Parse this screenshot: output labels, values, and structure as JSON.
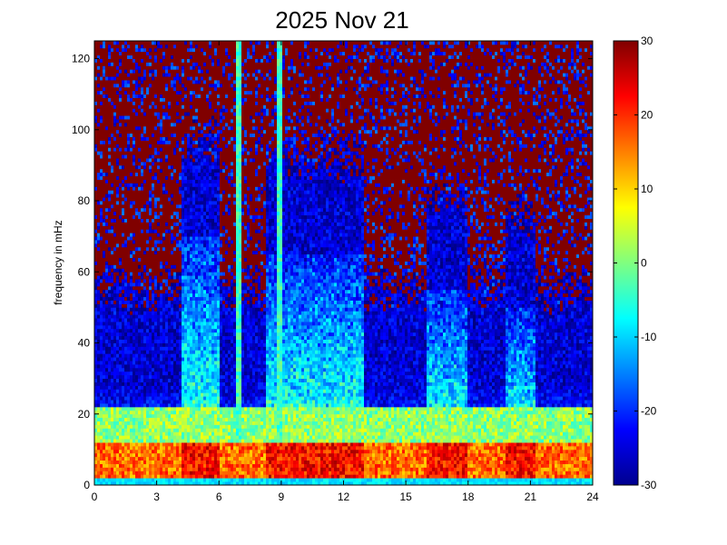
{
  "chart_data": {
    "type": "heatmap",
    "title": "2025 Nov 21",
    "xlabel": "",
    "ylabel": "frequency in mHz",
    "xlim": [
      0,
      24
    ],
    "ylim": [
      0,
      125
    ],
    "xticks": [
      "0",
      "3",
      "6",
      "9",
      "12",
      "15",
      "18",
      "21",
      "24"
    ],
    "yticks": [
      "0",
      "20",
      "40",
      "60",
      "80",
      "100",
      "120"
    ],
    "colorbar": {
      "range": [
        -30,
        30
      ],
      "ticks": [
        "-30",
        "-20",
        "-10",
        "0",
        "10",
        "20",
        "30"
      ],
      "colormap": "jet"
    },
    "grid": false,
    "activity_bands": [
      {
        "start_hour": 4.2,
        "end_hour": 6.0,
        "max_freq_mhz": 70
      },
      {
        "start_hour": 8.3,
        "end_hour": 13.0,
        "max_freq_mhz": 65
      },
      {
        "start_hour": 16.0,
        "end_hour": 18.0,
        "max_freq_mhz": 55
      },
      {
        "start_hour": 19.8,
        "end_hour": 21.2,
        "max_freq_mhz": 50
      }
    ],
    "vertical_streaks_hours": [
      6.9,
      8.9
    ],
    "low_freq_band_mhz": [
      2,
      12
    ]
  }
}
